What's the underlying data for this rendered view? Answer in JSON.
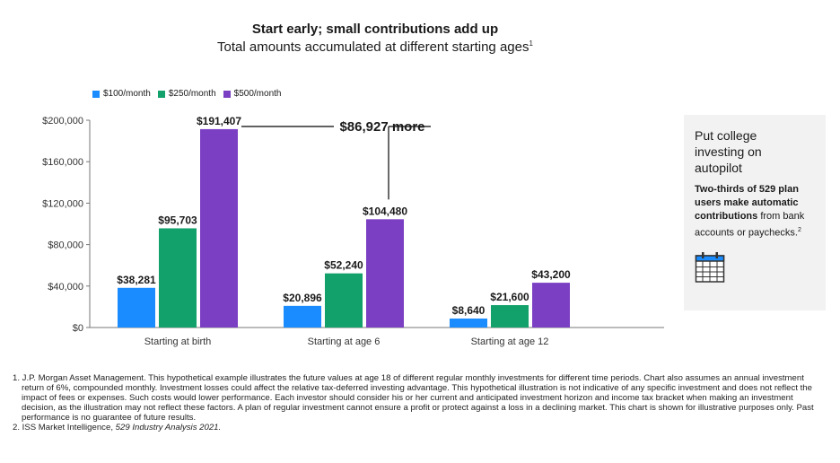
{
  "header": {
    "title": "Start early; small contributions add up",
    "subtitle": "Total amounts accumulated at different starting ages",
    "subtitle_note": "1"
  },
  "legend": [
    {
      "label": "$100/month",
      "color": "#1a8cff"
    },
    {
      "label": "$250/month",
      "color": "#12a06b"
    },
    {
      "label": "$500/month",
      "color": "#7b3fc4"
    }
  ],
  "chart_data": {
    "type": "bar",
    "categories": [
      "Starting at birth",
      "Starting at age 6",
      "Starting at age 12"
    ],
    "series": [
      {
        "name": "$100/month",
        "values": [
          38281,
          20896,
          8640
        ],
        "labels": [
          "$38,281",
          "$20,896",
          "$8,640"
        ],
        "color": "#1a8cff"
      },
      {
        "name": "$250/month",
        "values": [
          95703,
          52240,
          21600
        ],
        "labels": [
          "$95,703",
          "$52,240",
          "$21,600"
        ],
        "color": "#12a06b"
      },
      {
        "name": "$500/month",
        "values": [
          191407,
          104480,
          43200
        ],
        "labels": [
          "$191,407",
          "$104,480",
          "$43,200"
        ],
        "color": "#7b3fc4"
      }
    ],
    "ylim": [
      0,
      200000
    ],
    "yticks": [
      0,
      40000,
      80000,
      120000,
      160000,
      200000
    ],
    "ytick_labels": [
      "$0",
      "$40,000",
      "$80,000",
      "$120,000",
      "$160,000",
      "$200,000"
    ],
    "grid": false,
    "legend_position": "top-left",
    "annotation": "$86,927 more"
  },
  "callout": {
    "heading": "Put college investing on autopilot",
    "body_bold": "Two-thirds of 529 plan users make automatic contributions",
    "body_rest": " from bank accounts or paychecks.",
    "body_note": "2",
    "icon": "calendar-icon",
    "background": "#f2f2f2",
    "icon_color": "#1a8cff"
  },
  "footnotes": {
    "note1": "1. J.P. Morgan Asset Management. This hypothetical example illustrates the future values at age 18 of different regular monthly investments for different time periods. Chart also assumes an annual investment return of 6%, compounded monthly. Investment losses could affect the relative tax-deferred investing advantage. This hypothetical illustration is not indicative of any specific investment and does not reflect the impact of fees or expenses. Such costs would lower performance. Each investor should consider his or her current and anticipated investment horizon and income tax bracket when making an investment decision, as the illustration may not reflect these factors. A plan of regular investment cannot ensure a profit or protect against a loss in a declining market. This chart is shown for illustrative purposes only. Past performance is no guarantee of future results.",
    "note2_prefix": "2. ISS Market Intelligence, ",
    "note2_italic": "529 Industry Analysis 2021."
  }
}
